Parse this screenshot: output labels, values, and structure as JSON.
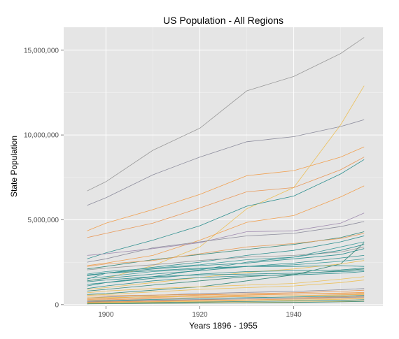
{
  "chart_data": {
    "type": "line",
    "title": "US Population - All Regions",
    "xlabel": "Years 1896 - 1955",
    "ylabel": "State Population",
    "xlim": [
      1891,
      1959
    ],
    "ylim": [
      -90000,
      16350000
    ],
    "x_ticks": [
      1900,
      1920,
      1940
    ],
    "x_tick_labels": [
      "1900",
      "1920",
      "1940"
    ],
    "y_ticks": [
      0,
      5000000,
      10000000,
      15000000
    ],
    "y_tick_labels": [
      "0",
      "5,000,000",
      "10,000,000",
      "15,000,000"
    ],
    "grid": true,
    "legend": "none",
    "x": [
      1896,
      1900,
      1910,
      1920,
      1930,
      1940,
      1950,
      1955
    ],
    "series": [
      {
        "color": "#999999",
        "values": [
          6700000,
          7250000,
          9100000,
          10400000,
          12600000,
          13450000,
          14800000,
          15750000
        ]
      },
      {
        "color": "#ecc05a",
        "values": [
          1400000,
          1550000,
          2300000,
          3400000,
          5650000,
          6900000,
          10600000,
          12900000
        ]
      },
      {
        "color": "#8c8c9c",
        "values": [
          5850000,
          6300000,
          7650000,
          8700000,
          9600000,
          9900000,
          10500000,
          10900000
        ]
      },
      {
        "color": "#f0a050",
        "values": [
          4350000,
          4800000,
          5600000,
          6500000,
          7600000,
          7900000,
          8700000,
          9300000
        ]
      },
      {
        "color": "#e89858",
        "values": [
          3950000,
          4200000,
          4800000,
          5700000,
          6650000,
          6900000,
          7950000,
          8700000
        ]
      },
      {
        "color": "#2e8f8f",
        "values": [
          2700000,
          3050000,
          3800000,
          4650000,
          5800000,
          6400000,
          7700000,
          8550000
        ]
      },
      {
        "color": "#f0a050",
        "values": [
          2300000,
          2450000,
          2900000,
          3800000,
          4850000,
          5250000,
          6350000,
          7000000
        ]
      },
      {
        "color": "#a08cb0",
        "values": [
          2900000,
          3000000,
          3300000,
          3650000,
          4300000,
          4350000,
          4800000,
          5400000
        ]
      },
      {
        "color": "#8c8c9c",
        "values": [
          2500000,
          2700000,
          3350000,
          3700000,
          4050000,
          4200000,
          4600000,
          4900000
        ]
      },
      {
        "color": "#3a8a7a",
        "values": [
          2100000,
          2250000,
          2650000,
          2950000,
          3250000,
          3550000,
          3950000,
          4300000
        ]
      },
      {
        "color": "#e8a060",
        "values": [
          2250000,
          2400000,
          2600000,
          3000000,
          3400000,
          3600000,
          3900000,
          4200000
        ]
      },
      {
        "color": "#2e8f8f",
        "values": [
          1500000,
          1850000,
          2200000,
          2500000,
          2900000,
          3200000,
          3700000,
          4050000
        ]
      },
      {
        "color": "#46a0a0",
        "values": [
          1800000,
          1950000,
          2150000,
          2350000,
          2650000,
          2800000,
          3400000,
          3700000
        ]
      },
      {
        "color": "#999999",
        "values": [
          2050000,
          2150000,
          2350000,
          2600000,
          2800000,
          2900000,
          3100000,
          3400000
        ]
      },
      {
        "color": "#2e8f8f",
        "values": [
          1100000,
          1300000,
          1650000,
          2050000,
          2500000,
          2800000,
          3200000,
          3550000
        ]
      },
      {
        "color": "#2e8f8f",
        "values": [
          1700000,
          1850000,
          2100000,
          2300000,
          2450000,
          2700000,
          2950000,
          3300000
        ]
      },
      {
        "color": "#3a8a7a",
        "values": [
          600000,
          650000,
          850000,
          1050000,
          1400000,
          1750000,
          2400000,
          3650000
        ]
      },
      {
        "color": "#2e8f8f",
        "values": [
          1400000,
          1550000,
          1800000,
          2000000,
          2250000,
          2450000,
          2750000,
          2900000
        ]
      },
      {
        "color": "#46a0a0",
        "values": [
          1550000,
          1650000,
          1950000,
          2100000,
          2250000,
          2350000,
          2550000,
          2700000
        ]
      },
      {
        "color": "#ecc05a",
        "values": [
          900000,
          1000000,
          1300000,
          1600000,
          1900000,
          2100000,
          2400000,
          2600000
        ]
      },
      {
        "color": "#2e8f8f",
        "values": [
          1750000,
          1850000,
          2000000,
          2150000,
          2250000,
          2250000,
          2300000,
          2250000
        ]
      },
      {
        "color": "#2e8f8f",
        "values": [
          1200000,
          1300000,
          1550000,
          1800000,
          1950000,
          2000000,
          2050000,
          2150000
        ]
      },
      {
        "color": "#3a8a7a",
        "values": [
          800000,
          900000,
          1150000,
          1400000,
          1650000,
          1800000,
          2000000,
          2100000
        ]
      },
      {
        "color": "#2e8f8f",
        "values": [
          1350000,
          1450000,
          1650000,
          1750000,
          1800000,
          1850000,
          1950000,
          2000000
        ]
      },
      {
        "color": "#2e8f8f",
        "values": [
          950000,
          1100000,
          1400000,
          1600000,
          1700000,
          1750000,
          1850000,
          1950000
        ]
      },
      {
        "color": "#ecc05a",
        "values": [
          700000,
          800000,
          950000,
          1050000,
          1150000,
          1250000,
          1500000,
          1650000
        ]
      },
      {
        "color": "#ecc05a",
        "values": [
          550000,
          600000,
          750000,
          900000,
          1000000,
          1100000,
          1300000,
          1450000
        ]
      },
      {
        "color": "#8c8c9c",
        "values": [
          400000,
          450000,
          550000,
          650000,
          720000,
          780000,
          880000,
          950000
        ]
      },
      {
        "color": "#e89858",
        "values": [
          350000,
          380000,
          480000,
          560000,
          640000,
          700000,
          780000,
          850000
        ]
      },
      {
        "color": "#f0a050",
        "values": [
          300000,
          330000,
          420000,
          500000,
          560000,
          620000,
          680000,
          720000
        ]
      },
      {
        "color": "#f0a050",
        "values": [
          500000,
          520000,
          560000,
          600000,
          620000,
          620000,
          650000,
          680000
        ]
      },
      {
        "color": "#e89858",
        "values": [
          250000,
          280000,
          350000,
          420000,
          480000,
          530000,
          580000,
          620000
        ]
      },
      {
        "color": "#ecc05a",
        "values": [
          400000,
          420000,
          460000,
          480000,
          500000,
          520000,
          560000,
          590000
        ]
      },
      {
        "color": "#2e8f8f",
        "values": [
          200000,
          230000,
          300000,
          360000,
          410000,
          450000,
          500000,
          540000
        ]
      },
      {
        "color": "#e89858",
        "values": [
          150000,
          170000,
          220000,
          280000,
          340000,
          400000,
          460000,
          500000
        ]
      },
      {
        "color": "#8c8c9c",
        "values": [
          180000,
          200000,
          250000,
          300000,
          340000,
          380000,
          420000,
          450000
        ]
      },
      {
        "color": "#f0a050",
        "values": [
          120000,
          140000,
          180000,
          230000,
          280000,
          320000,
          370000,
          410000
        ]
      },
      {
        "color": "#ecc05a",
        "values": [
          100000,
          120000,
          150000,
          190000,
          230000,
          270000,
          310000,
          350000
        ]
      },
      {
        "color": "#3a8a7a",
        "values": [
          80000,
          90000,
          120000,
          150000,
          180000,
          210000,
          250000,
          290000
        ]
      },
      {
        "color": "#ecc05a",
        "values": [
          60000,
          70000,
          90000,
          110000,
          130000,
          150000,
          180000,
          210000
        ]
      },
      {
        "color": "#3a8a7a",
        "values": [
          40000,
          50000,
          70000,
          90000,
          110000,
          130000,
          160000,
          190000
        ]
      }
    ]
  }
}
